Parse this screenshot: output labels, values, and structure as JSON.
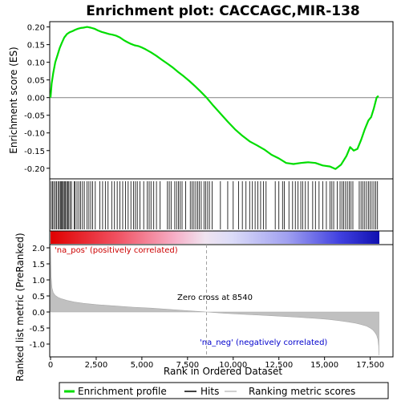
{
  "chart_data": {
    "type": "line",
    "title": "Enrichment plot: CACCAGC,MIR-138",
    "colors": {
      "enrichment_line": "#00dd00",
      "hits": "#000000",
      "ranking_fill": "#c0c0c0",
      "zero_cross_line": "#a0a0a0",
      "pos_label": "#cc0000",
      "neg_label": "#0000cc"
    },
    "top_panel": {
      "ylabel": "Enrichment score (ES)",
      "ylim": [
        -0.23,
        0.215
      ],
      "yticks": [
        0.2,
        0.15,
        0.1,
        0.05,
        0.0,
        -0.05,
        -0.1,
        -0.15,
        -0.2
      ],
      "ytick_labels": [
        "0.20",
        "0.15",
        "0.10",
        "0.05",
        "0.00",
        "-0.05",
        "-0.10",
        "-0.15",
        "-0.20"
      ],
      "series": [
        {
          "name": "Enrichment profile",
          "x": [
            0,
            60,
            150,
            260,
            380,
            500,
            620,
            750,
            900,
            1050,
            1200,
            1350,
            1500,
            1650,
            1800,
            2000,
            2200,
            2400,
            2600,
            2800,
            3000,
            3200,
            3400,
            3600,
            3800,
            4000,
            4200,
            4400,
            4600,
            4800,
            5000,
            5200,
            5500,
            5800,
            6100,
            6400,
            6700,
            7000,
            7300,
            7600,
            7900,
            8200,
            8540,
            8900,
            9300,
            9700,
            10100,
            10500,
            10900,
            11300,
            11700,
            12100,
            12500,
            12900,
            13300,
            13700,
            14100,
            14500,
            14900,
            15300,
            15600,
            15900,
            16200,
            16400,
            16600,
            16800,
            17000,
            17200,
            17400,
            17550,
            17700,
            17850,
            17950
          ],
          "y": [
            0.0,
            0.04,
            0.07,
            0.1,
            0.12,
            0.14,
            0.155,
            0.17,
            0.18,
            0.185,
            0.188,
            0.192,
            0.195,
            0.197,
            0.198,
            0.2,
            0.198,
            0.195,
            0.19,
            0.186,
            0.183,
            0.18,
            0.178,
            0.175,
            0.17,
            0.163,
            0.157,
            0.152,
            0.148,
            0.146,
            0.142,
            0.137,
            0.128,
            0.118,
            0.107,
            0.096,
            0.085,
            0.072,
            0.06,
            0.047,
            0.033,
            0.018,
            0.0,
            -0.022,
            -0.045,
            -0.068,
            -0.09,
            -0.108,
            -0.124,
            -0.135,
            -0.147,
            -0.162,
            -0.172,
            -0.185,
            -0.188,
            -0.185,
            -0.183,
            -0.185,
            -0.192,
            -0.195,
            -0.202,
            -0.19,
            -0.165,
            -0.14,
            -0.15,
            -0.145,
            -0.12,
            -0.09,
            -0.065,
            -0.055,
            -0.03,
            0.0,
            0.005
          ]
        }
      ]
    },
    "hits_panel": {
      "hits": [
        40,
        110,
        180,
        260,
        330,
        410,
        480,
        540,
        600,
        650,
        700,
        760,
        820,
        880,
        940,
        1000,
        1080,
        1150,
        1300,
        1350,
        1450,
        1550,
        1650,
        1750,
        1850,
        2000,
        2100,
        2200,
        2300,
        2450,
        2700,
        2850,
        3000,
        3150,
        3350,
        3500,
        3650,
        3800,
        3950,
        4100,
        4250,
        4400,
        4550,
        4650,
        4750,
        4900,
        5100,
        5300,
        5400,
        5500,
        5650,
        5800,
        6000,
        6400,
        6500,
        6600,
        6800,
        6900,
        7000,
        7100,
        7200,
        7400,
        7650,
        7750,
        7850,
        7950,
        8050,
        8150,
        8250,
        8400,
        8500,
        8600,
        8700,
        8850,
        9300,
        9700,
        10000,
        10300,
        10500,
        10700,
        10900,
        11050,
        11200,
        11350,
        11500,
        11650,
        11800,
        12300,
        12500,
        12700,
        12800,
        13050,
        13250,
        13400,
        13550,
        13700,
        13800,
        13950,
        14100,
        14350,
        14500,
        14700,
        14900,
        15100,
        15300,
        15400,
        15500,
        15700,
        15850,
        15950,
        16050,
        16150,
        16250,
        16350,
        16450,
        16550,
        16900,
        17000,
        17100,
        17200,
        17300,
        17400,
        17500,
        17600,
        17700,
        17800,
        17900
      ]
    },
    "ranking_panel": {
      "ylabel": "Ranked list metric (PreRanked)",
      "ylim": [
        -1.4,
        2.1
      ],
      "yticks": [
        2.0,
        1.5,
        1.0,
        0.5,
        0.0,
        -0.5,
        -1.0
      ],
      "ytick_labels": [
        "2.0",
        "1.5",
        "1.0",
        "0.5",
        "0.0",
        "-0.5",
        "-1.0"
      ],
      "x": [
        0,
        30,
        80,
        150,
        250,
        400,
        600,
        900,
        1300,
        1800,
        2500,
        3500,
        4500,
        5500,
        6500,
        7500,
        8540,
        9500,
        10500,
        11500,
        12500,
        13500,
        14500,
        15200,
        15800,
        16300,
        16700,
        17000,
        17300,
        17500,
        17650,
        17750,
        17850,
        17920,
        17960,
        17980
      ],
      "values": [
        2.05,
        1.1,
        0.75,
        0.6,
        0.52,
        0.46,
        0.41,
        0.36,
        0.31,
        0.27,
        0.23,
        0.19,
        0.15,
        0.12,
        0.08,
        0.04,
        0.0,
        -0.04,
        -0.07,
        -0.1,
        -0.13,
        -0.16,
        -0.2,
        -0.23,
        -0.27,
        -0.31,
        -0.35,
        -0.39,
        -0.44,
        -0.5,
        -0.56,
        -0.63,
        -0.72,
        -0.85,
        -1.05,
        -1.35
      ],
      "pos_label": "'na_pos' (positively correlated)",
      "neg_label": "'na_neg' (negatively correlated)",
      "zero_cross_label": "Zero cross at 8540",
      "zero_cross": 8540
    },
    "xlabel": "Rank in Ordered Dataset",
    "xlim": [
      0,
      18000
    ],
    "xticks": [
      0,
      2500,
      5000,
      7500,
      10000,
      12500,
      15000,
      17500
    ],
    "xtick_labels": [
      "0",
      "2,500",
      "5,000",
      "7,500",
      "10,000",
      "12,500",
      "15,000",
      "17,500"
    ],
    "legend": {
      "placement": "bottom",
      "entries": [
        "Enrichment profile",
        "Hits",
        "Ranking metric scores"
      ]
    }
  }
}
